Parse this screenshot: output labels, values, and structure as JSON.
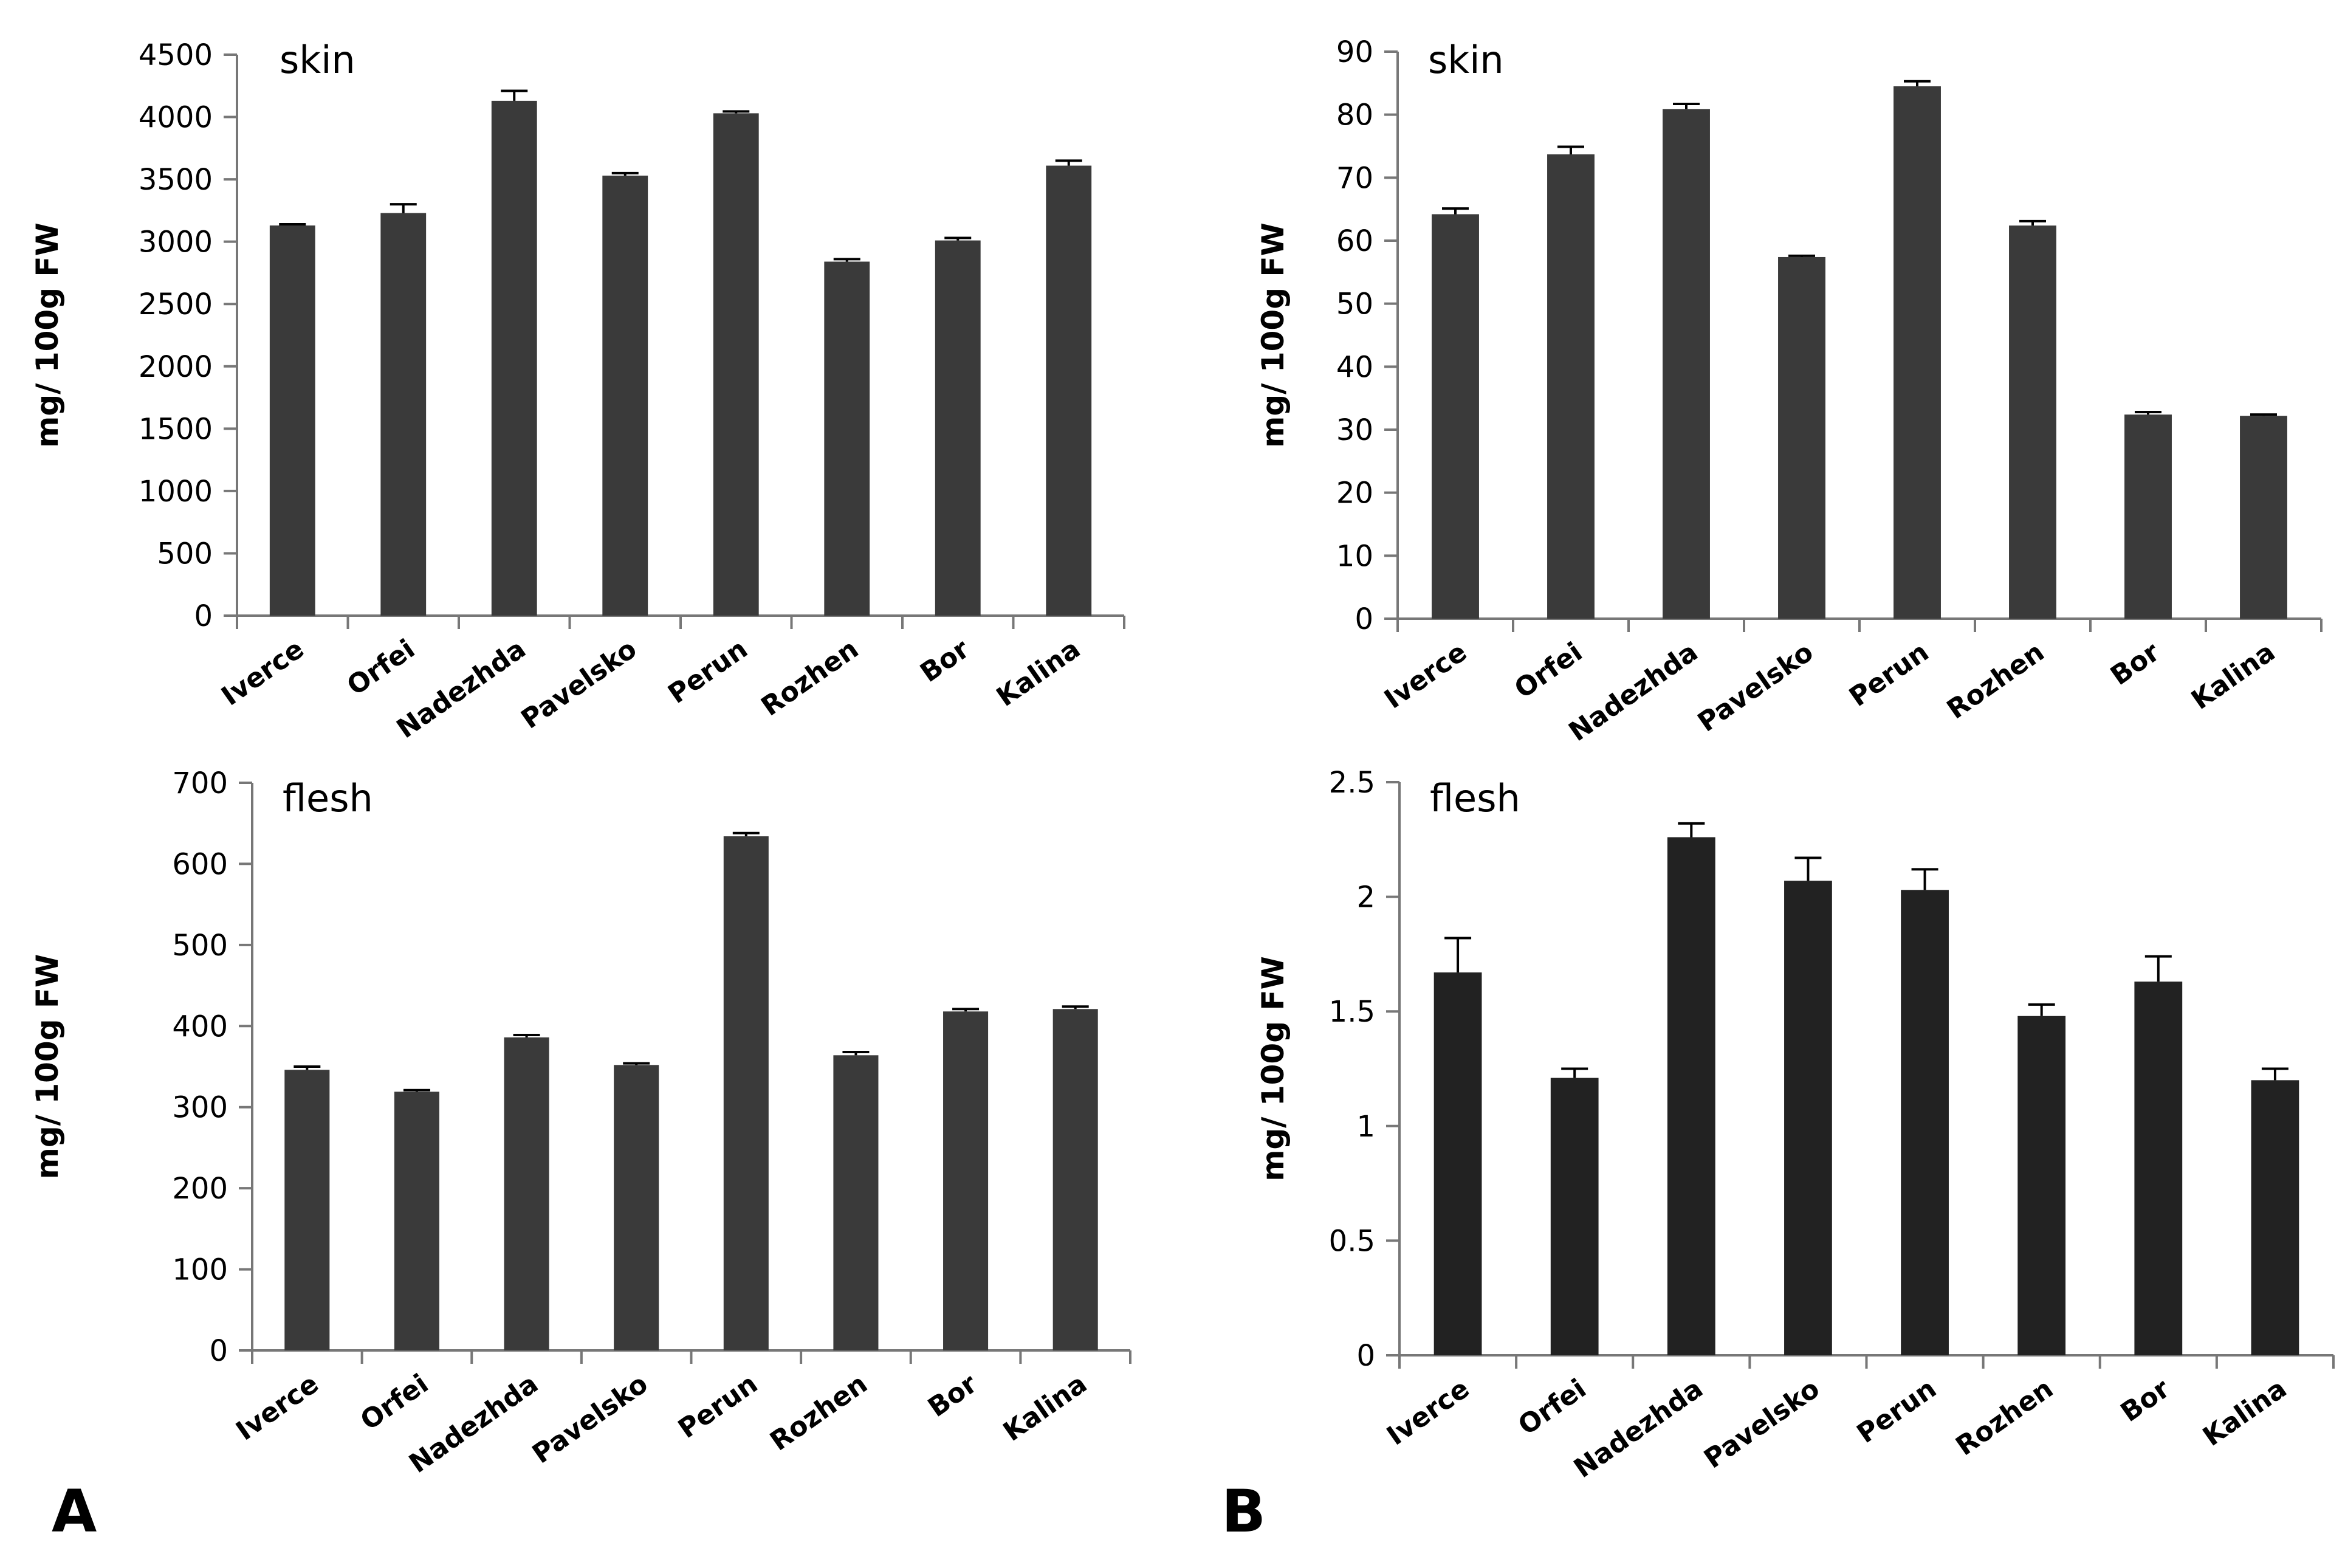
{
  "figure": {
    "panel_labels": [
      "A",
      "B"
    ],
    "bar_color": "#3a3a3a",
    "bar_color_dark": "#222222",
    "axis_color": "#777777",
    "text_color": "#000000"
  },
  "chart_data": [
    {
      "id": "A-skin",
      "type": "bar",
      "title": "skin",
      "xlabel": "",
      "ylabel": "mg/ 100g FW",
      "categories": [
        "Iverce",
        "Orfei",
        "Nadezhda",
        "Pavelsko",
        "Perun",
        "Rozhen",
        "Bor",
        "Kalina"
      ],
      "values": [
        3130,
        3230,
        4130,
        3530,
        4030,
        2840,
        3010,
        3610
      ],
      "errors": [
        10,
        70,
        80,
        20,
        15,
        20,
        20,
        40
      ],
      "ylim": [
        0,
        4500
      ],
      "yticks": [
        0,
        500,
        1000,
        1500,
        2000,
        2500,
        3000,
        3500,
        4000,
        4500
      ],
      "ytick_labels": [
        "0",
        "500",
        "1000",
        "1500",
        "2000",
        "2500",
        "3000",
        "3500",
        "4000",
        "4500"
      ],
      "grid": false,
      "bar_color": "#3a3a3a"
    },
    {
      "id": "B-skin",
      "type": "bar",
      "title": "skin",
      "xlabel": "",
      "ylabel": "mg/ 100g FW",
      "categories": [
        "Iverce",
        "Orfei",
        "Nadezhda",
        "Pavelsko",
        "Perun",
        "Rozhen",
        "Bor",
        "Kalina"
      ],
      "values": [
        64.2,
        73.7,
        80.9,
        57.4,
        84.5,
        62.4,
        32.4,
        32.2
      ],
      "errors": [
        0.9,
        1.2,
        0.8,
        0.2,
        0.8,
        0.7,
        0.4,
        0.2
      ],
      "ylim": [
        0,
        90
      ],
      "yticks": [
        0,
        10,
        20,
        30,
        40,
        50,
        60,
        70,
        80,
        90
      ],
      "ytick_labels": [
        "0",
        "10",
        "20",
        "30",
        "40",
        "50",
        "60",
        "70",
        "80",
        "90"
      ],
      "grid": false,
      "bar_color": "#3a3a3a"
    },
    {
      "id": "A-flesh",
      "type": "bar",
      "title": "flesh",
      "xlabel": "",
      "ylabel": "mg/ 100g FW",
      "categories": [
        "Iverce",
        "Orfei",
        "Nadezhda",
        "Pavelsko",
        "Perun",
        "Rozhen",
        "Bor",
        "Kalina"
      ],
      "values": [
        346,
        319,
        386,
        352,
        634,
        364,
        418,
        421
      ],
      "errors": [
        4,
        2,
        3,
        2,
        4,
        4,
        3,
        3
      ],
      "ylim": [
        0,
        700
      ],
      "yticks": [
        0,
        100,
        200,
        300,
        400,
        500,
        600,
        700
      ],
      "ytick_labels": [
        "0",
        "100",
        "200",
        "300",
        "400",
        "500",
        "600",
        "700"
      ],
      "grid": false,
      "bar_color": "#3a3a3a"
    },
    {
      "id": "B-flesh",
      "type": "bar",
      "title": "flesh",
      "xlabel": "",
      "ylabel": "mg/ 100g FW",
      "categories": [
        "Iverce",
        "Orfei",
        "Nadezhda",
        "Pavelsko",
        "Perun",
        "Rozhen",
        "Bor",
        "Kalina"
      ],
      "values": [
        1.67,
        1.21,
        2.26,
        2.07,
        2.03,
        1.48,
        1.63,
        1.2
      ],
      "errors": [
        0.15,
        0.04,
        0.06,
        0.1,
        0.09,
        0.05,
        0.11,
        0.05
      ],
      "ylim": [
        0,
        2.5
      ],
      "yticks": [
        0,
        0.5,
        1,
        1.5,
        2,
        2.5
      ],
      "ytick_labels": [
        "0",
        "0.5",
        "1",
        "1.5",
        "2",
        "2.5"
      ],
      "grid": false,
      "bar_color": "#222222"
    }
  ]
}
